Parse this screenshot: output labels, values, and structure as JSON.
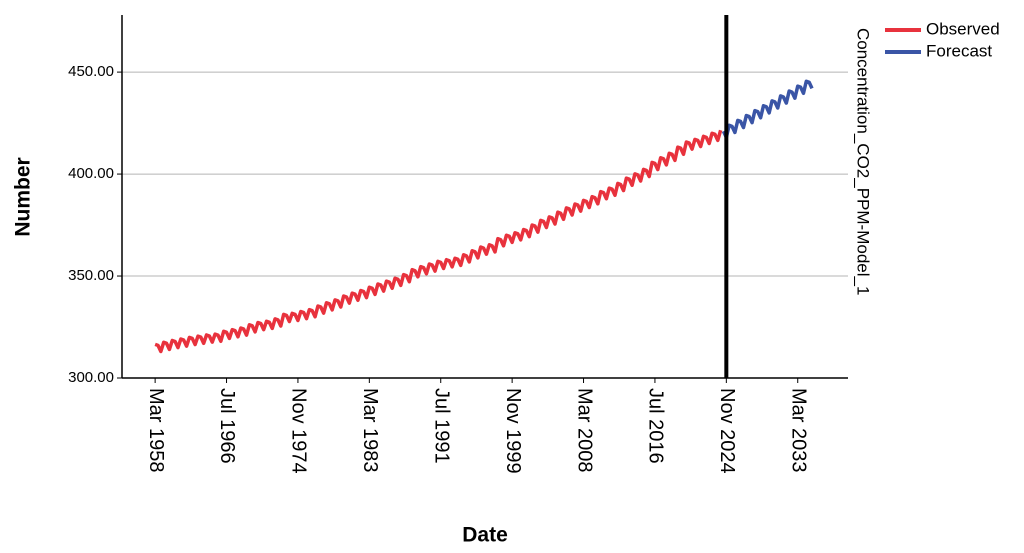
{
  "chart_data": {
    "type": "line",
    "x_label": "Date",
    "y_label": "Number",
    "legend_title": "Concentration_CO2_PPM-Model_1",
    "legend_position": "right",
    "grid": true,
    "vline": "Nov 2024",
    "ylim": [
      300,
      478
    ],
    "yticks": [
      {
        "value": 300,
        "label": "300.00"
      },
      {
        "value": 350,
        "label": "350.00"
      },
      {
        "value": 400,
        "label": "400.00"
      },
      {
        "value": 450,
        "label": "450.00"
      }
    ],
    "categories": [
      "Mar 1958",
      null,
      null,
      null,
      null,
      null,
      null,
      null,
      null,
      null,
      null,
      null,
      null,
      null,
      null,
      null,
      null,
      null,
      null,
      null,
      null,
      null,
      null,
      null,
      null,
      "Jul 1966",
      null,
      null,
      null,
      null,
      null,
      null,
      null,
      null,
      null,
      null,
      null,
      null,
      null,
      null,
      null,
      null,
      null,
      null,
      null,
      null,
      null,
      null,
      null,
      null,
      "Nov 1974",
      null,
      null,
      null,
      null,
      null,
      null,
      null,
      null,
      null,
      null,
      null,
      null,
      null,
      null,
      null,
      null,
      null,
      null,
      null,
      null,
      null,
      null,
      null,
      null,
      "Mar 1983",
      null,
      null,
      null,
      null,
      null,
      null,
      null,
      null,
      null,
      null,
      null,
      null,
      null,
      null,
      null,
      null,
      null,
      null,
      null,
      null,
      null,
      null,
      null,
      null,
      "Jul 1991",
      null,
      null,
      null,
      null,
      null,
      null,
      null,
      null,
      null,
      null,
      null,
      null,
      null,
      null,
      null,
      null,
      null,
      null,
      null,
      null,
      null,
      null,
      null,
      null,
      "Nov 1999",
      null,
      null,
      null,
      null,
      null,
      null,
      null,
      null,
      null,
      null,
      null,
      null,
      null,
      null,
      null,
      null,
      null,
      null,
      null,
      null,
      null,
      null,
      null,
      null,
      "Mar 2008",
      null,
      null,
      null,
      null,
      null,
      null,
      null,
      null,
      null,
      null,
      null,
      null,
      null,
      null,
      null,
      null,
      null,
      null,
      null,
      null,
      null,
      null,
      null,
      null,
      "Jul 2016",
      null,
      null,
      null,
      null,
      null,
      null,
      null,
      null,
      null,
      null,
      null,
      null,
      null,
      null,
      null,
      null,
      null,
      null,
      null,
      null,
      null,
      null,
      null,
      null,
      "Nov 2024",
      null,
      null,
      null,
      null,
      null,
      null,
      null,
      null,
      null,
      null,
      null,
      null,
      null,
      null,
      null,
      null,
      null,
      null,
      null,
      null,
      null,
      null,
      null,
      null,
      "Mar 2033",
      null,
      null,
      null,
      null,
      null
    ],
    "series": [
      {
        "name": "Observed",
        "color": "#e8323d",
        "values": [
          316.5,
          316.0,
          313.0,
          317.5,
          317.0,
          314.0,
          318.4,
          317.9,
          314.9,
          319.1,
          318.6,
          315.6,
          319.9,
          319.4,
          316.4,
          320.5,
          320.0,
          317.0,
          321.1,
          320.6,
          317.6,
          321.5,
          321.0,
          318.0,
          322.9,
          322.4,
          319.4,
          323.7,
          323.2,
          320.2,
          324.5,
          324.0,
          321.0,
          326.1,
          325.6,
          322.6,
          327.2,
          326.7,
          323.7,
          327.8,
          327.3,
          324.3,
          329.0,
          328.5,
          325.5,
          331.2,
          330.7,
          327.7,
          331.7,
          331.2,
          328.2,
          332.6,
          332.1,
          329.1,
          333.5,
          333.0,
          330.0,
          335.3,
          334.8,
          331.8,
          336.9,
          336.4,
          333.4,
          338.3,
          337.8,
          334.8,
          340.2,
          339.7,
          336.7,
          341.6,
          341.1,
          338.1,
          342.9,
          342.4,
          339.4,
          344.5,
          344.0,
          341.0,
          346.1,
          345.6,
          342.6,
          347.5,
          347.0,
          344.0,
          348.9,
          348.4,
          345.4,
          350.7,
          350.2,
          347.2,
          353.1,
          352.6,
          349.6,
          354.6,
          354.1,
          351.1,
          355.9,
          355.4,
          352.4,
          357.2,
          356.7,
          353.7,
          358.0,
          357.5,
          354.5,
          358.7,
          358.2,
          355.2,
          360.4,
          359.9,
          356.9,
          362.4,
          361.9,
          358.9,
          364.2,
          363.7,
          360.7,
          365.3,
          364.8,
          361.8,
          368.3,
          367.8,
          364.8,
          370.0,
          369.5,
          366.5,
          371.2,
          370.7,
          367.7,
          372.8,
          372.3,
          369.3,
          375.0,
          374.5,
          371.5,
          377.3,
          376.8,
          373.8,
          379.0,
          378.5,
          375.5,
          381.3,
          380.8,
          377.8,
          383.4,
          382.9,
          379.9,
          385.3,
          384.8,
          381.8,
          387.1,
          386.6,
          383.6,
          388.9,
          388.4,
          385.4,
          391.4,
          390.9,
          387.9,
          393.1,
          392.6,
          389.6,
          395.4,
          394.9,
          391.9,
          398.0,
          397.5,
          394.5,
          400.1,
          399.6,
          396.6,
          402.3,
          401.8,
          398.8,
          405.7,
          405.2,
          402.2,
          408.0,
          407.5,
          404.5,
          410.2,
          409.7,
          406.7,
          413.2,
          412.7,
          409.7,
          415.7,
          415.2,
          412.2,
          417.0,
          416.5,
          413.5,
          418.5,
          418.0,
          415.0,
          420.0,
          419.5,
          416.5,
          421.5,
          null,
          null,
          null,
          null,
          null,
          null,
          null,
          null,
          null,
          null,
          null,
          null,
          null,
          null,
          null,
          null,
          null,
          null,
          null,
          null,
          null,
          null,
          null,
          null,
          null,
          null,
          null,
          null,
          null,
          null,
          null,
          null
        ]
      },
      {
        "name": "Forecast",
        "color": "#3a55a6",
        "values": [
          null,
          null,
          null,
          null,
          null,
          null,
          null,
          null,
          null,
          null,
          null,
          null,
          null,
          null,
          null,
          null,
          null,
          null,
          null,
          null,
          null,
          null,
          null,
          null,
          null,
          null,
          null,
          null,
          null,
          null,
          null,
          null,
          null,
          null,
          null,
          null,
          null,
          null,
          null,
          null,
          null,
          null,
          null,
          null,
          null,
          null,
          null,
          null,
          null,
          null,
          null,
          null,
          null,
          null,
          null,
          null,
          null,
          null,
          null,
          null,
          null,
          null,
          null,
          null,
          null,
          null,
          null,
          null,
          null,
          null,
          null,
          null,
          null,
          null,
          null,
          null,
          null,
          null,
          null,
          null,
          null,
          null,
          null,
          null,
          null,
          null,
          null,
          null,
          null,
          null,
          null,
          null,
          null,
          null,
          null,
          null,
          null,
          null,
          null,
          null,
          null,
          null,
          null,
          null,
          null,
          null,
          null,
          null,
          null,
          null,
          null,
          null,
          null,
          null,
          null,
          null,
          null,
          null,
          null,
          null,
          null,
          null,
          null,
          null,
          null,
          null,
          null,
          null,
          null,
          null,
          null,
          null,
          null,
          null,
          null,
          null,
          null,
          null,
          null,
          null,
          null,
          null,
          null,
          null,
          null,
          null,
          null,
          null,
          null,
          null,
          null,
          null,
          null,
          null,
          null,
          null,
          null,
          null,
          null,
          null,
          null,
          null,
          null,
          null,
          null,
          null,
          null,
          null,
          null,
          null,
          null,
          null,
          null,
          null,
          null,
          null,
          null,
          null,
          null,
          null,
          null,
          null,
          null,
          null,
          null,
          null,
          null,
          null,
          null,
          null,
          null,
          null,
          null,
          null,
          null,
          null,
          null,
          null,
          null,
          421.0,
          418.0,
          423.9,
          423.4,
          420.4,
          426.3,
          425.8,
          422.8,
          428.7,
          428.2,
          425.2,
          431.1,
          430.6,
          427.6,
          433.5,
          433.0,
          430.0,
          435.9,
          435.4,
          432.4,
          438.3,
          437.8,
          434.8,
          440.7,
          440.2,
          437.2,
          443.1,
          442.6,
          439.6,
          445.5,
          445.0,
          442.0
        ]
      }
    ]
  }
}
